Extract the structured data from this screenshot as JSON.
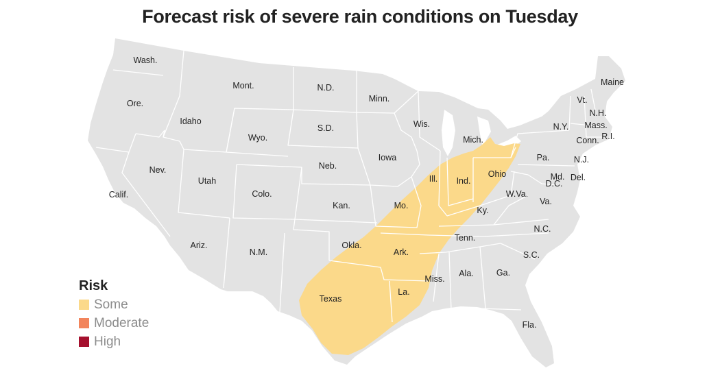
{
  "title": "Forecast risk of severe rain conditions on Tuesday",
  "colors": {
    "land": "#e3e3e3",
    "border": "#ffffff",
    "some": "#fbd98a",
    "moderate": "#f2855c",
    "high": "#a5102e"
  },
  "legend": {
    "title": "Risk",
    "items": [
      {
        "label": "Some",
        "color": "#fbd98a"
      },
      {
        "label": "Moderate",
        "color": "#f2855c"
      },
      {
        "label": "High",
        "color": "#a5102e"
      }
    ]
  },
  "state_labels": [
    "Wash.",
    "Ore.",
    "Calif.",
    "Idaho",
    "Nev.",
    "Mont.",
    "Wyo.",
    "Utah",
    "Ariz.",
    "Colo.",
    "N.M.",
    "N.D.",
    "S.D.",
    "Neb.",
    "Kan.",
    "Okla.",
    "Texas",
    "Minn.",
    "Iowa",
    "Mo.",
    "Ark.",
    "La.",
    "Wis.",
    "Ill.",
    "Mich.",
    "Ind.",
    "Ohio",
    "Ky.",
    "Tenn.",
    "Miss.",
    "Ala.",
    "Ga.",
    "Fla.",
    "S.C.",
    "N.C.",
    "Va.",
    "W.Va.",
    "Pa.",
    "N.Y.",
    "Vt.",
    "N.H.",
    "Maine",
    "Mass.",
    "Conn.",
    "R.I.",
    "N.J.",
    "Md.",
    "Del.",
    "D.C."
  ],
  "risk_area": {
    "level": "Some"
  }
}
